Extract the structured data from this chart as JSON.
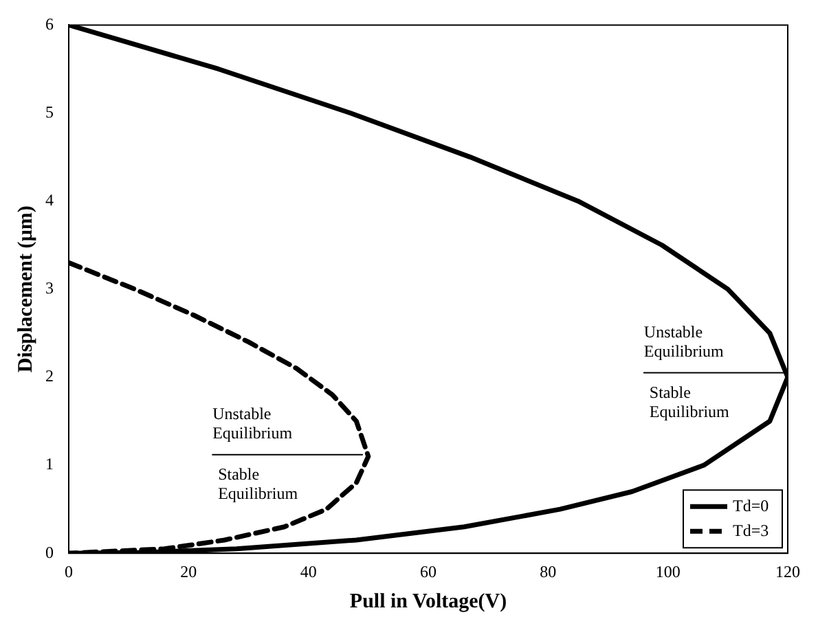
{
  "chart_data": {
    "type": "line",
    "xlabel": "Pull in Voltage(V)",
    "ylabel": "Displacement (µm)",
    "xlim": [
      0,
      120
    ],
    "xticks": [
      0,
      20,
      40,
      60,
      80,
      100,
      120
    ],
    "ylim": [
      0,
      6
    ],
    "yticks": [
      0,
      1,
      2,
      3,
      4,
      5,
      6
    ],
    "grid": false,
    "legend": "bottom right",
    "marker": "none",
    "series": [
      {
        "name": "Td=0",
        "color": "#000000",
        "line_style": "solid",
        "x": [
          0,
          25,
          47,
          67,
          85,
          99,
          110,
          117,
          120,
          117,
          106,
          94,
          82,
          66,
          48,
          28,
          13,
          0
        ],
        "values": [
          6,
          5.5,
          5,
          4.5,
          4,
          3.5,
          3,
          2.5,
          2,
          1.5,
          1,
          0.7,
          0.5,
          0.3,
          0.15,
          0.05,
          0.01,
          0
        ]
      },
      {
        "name": "Td=3",
        "color": "#000000",
        "line_style": "dashed",
        "x": [
          0,
          11,
          21,
          30,
          38,
          44,
          48,
          50,
          48,
          43,
          36,
          26,
          16,
          0
        ],
        "values": [
          3.3,
          3,
          2.7,
          2.4,
          2.1,
          1.8,
          1.5,
          1.1,
          0.8,
          0.5,
          0.3,
          0.15,
          0.05,
          0
        ]
      },
      {
        "color": "#000000",
        "line_style": "solid",
        "x": [
          96,
          120
        ],
        "values": [
          2.05,
          2.05
        ]
      },
      {
        "color": "#000000",
        "line_style": "solid",
        "x": [
          24,
          49
        ],
        "values": [
          1.12,
          1.12
        ]
      }
    ],
    "annotations": [
      "Unstable Equilibrium",
      "Stable Equilibrium",
      "Unstable Equilibrium",
      "Stable Equilibrium"
    ]
  }
}
